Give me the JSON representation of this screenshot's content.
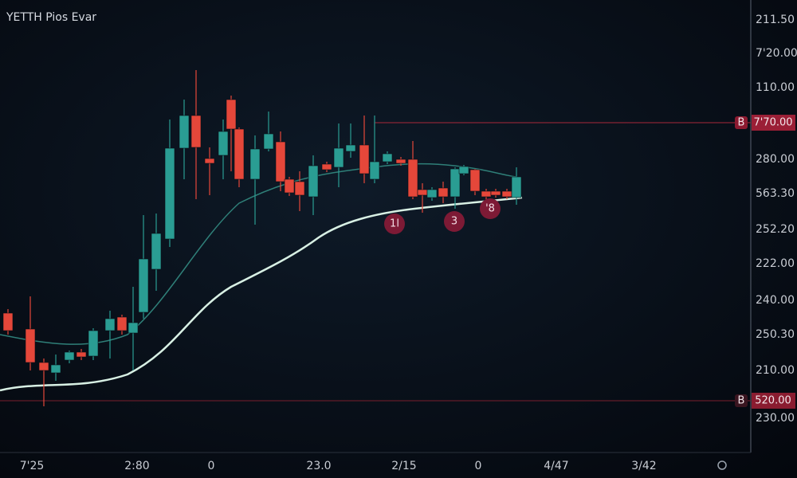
{
  "header": {
    "title": "YETTH Pios Evar"
  },
  "y_axis": {
    "labels": [
      "211.50",
      "7'20.00",
      "110.00",
      "280.00",
      "563.30",
      "252.20",
      "222.00",
      "240.00",
      "250.30",
      "210.00",
      "230.00"
    ]
  },
  "x_axis": {
    "labels": [
      "7'25",
      "2:80",
      "0",
      "23.0",
      "2/15",
      "0",
      "4/47",
      "3/42"
    ]
  },
  "price_tags": [
    {
      "badge": "B",
      "label": "7'70.00"
    },
    {
      "badge": "B",
      "label": "520.00"
    }
  ],
  "markers": [
    "1l",
    "3",
    "'8"
  ]
}
